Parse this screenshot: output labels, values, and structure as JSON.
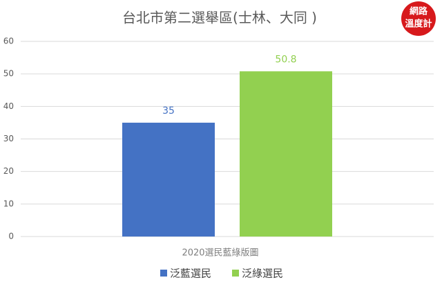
{
  "chart_data": {
    "type": "bar",
    "title": "台北市第二選舉區(士林、大同 )",
    "categories": [
      "2020選民藍綠版圖"
    ],
    "series": [
      {
        "name": "泛藍選民",
        "color": "#4472c4",
        "values": [
          35
        ]
      },
      {
        "name": "泛綠選民",
        "color": "#92d050",
        "values": [
          50.8
        ]
      }
    ],
    "ylim": [
      0,
      60
    ],
    "yticks": [
      0,
      10,
      20,
      30,
      40,
      50,
      60
    ],
    "grid": true,
    "legend": "bottom"
  },
  "logo": [
    "網路",
    "溫度計"
  ]
}
